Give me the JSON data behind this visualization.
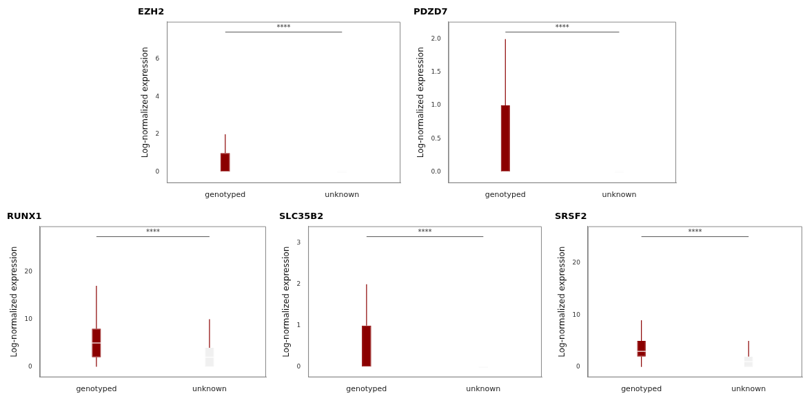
{
  "chart_data": [
    {
      "type": "box",
      "title": "EZH2",
      "ylabel": "Log-normalized expression",
      "categories": [
        "genotyped",
        "unknown"
      ],
      "colors": [
        "#8b0000",
        "#f0f0f0"
      ],
      "boxes": [
        {
          "low": 0,
          "q1": 0,
          "median": 0,
          "q3": 1,
          "high": 2
        },
        {
          "low": 0,
          "q1": 0,
          "median": 0,
          "q3": 0,
          "high": 0
        }
      ],
      "ylim": [
        -0.6,
        8.0
      ],
      "yticks": [
        0,
        2,
        4,
        6
      ],
      "grid": false,
      "annotations": [
        "****"
      ]
    },
    {
      "type": "box",
      "title": "PDZD7",
      "ylabel": "Log-normalized expression",
      "categories": [
        "genotyped",
        "unknown"
      ],
      "colors": [
        "#8b0000",
        "#f0f0f0"
      ],
      "boxes": [
        {
          "low": 0,
          "q1": 0,
          "median": 0,
          "q3": 1,
          "high": 2
        },
        {
          "low": 0,
          "q1": 0,
          "median": 0,
          "q3": 0,
          "high": 0
        }
      ],
      "ylim": [
        -0.17,
        2.26
      ],
      "yticks": [
        {
          "value": 0,
          "label": "0.0"
        },
        0.5,
        {
          "value": 1,
          "label": "1.0"
        },
        1.5,
        {
          "value": 2,
          "label": "2.0"
        }
      ],
      "grid": false,
      "annotations": [
        "****"
      ]
    },
    {
      "type": "box",
      "title": "RUNX1",
      "ylabel": "Log-normalized expression",
      "categories": [
        "genotyped",
        "unknown"
      ],
      "colors": [
        "#8b0000",
        "#f0f0f0"
      ],
      "boxes": [
        {
          "low": 0,
          "q1": 2,
          "median": 5,
          "q3": 8,
          "high": 17
        },
        {
          "low": 0,
          "q1": 0,
          "median": 2,
          "q3": 4,
          "high": 10
        }
      ],
      "ylim": [
        -2.2,
        29.5
      ],
      "yticks": [
        0,
        10,
        20
      ],
      "grid": false,
      "annotations": [
        "****"
      ]
    },
    {
      "type": "box",
      "title": "SLC35B2",
      "ylabel": "Log-normalized expression",
      "categories": [
        "genotyped",
        "unknown"
      ],
      "colors": [
        "#8b0000",
        "#f0f0f0"
      ],
      "boxes": [
        {
          "low": 0,
          "q1": 0,
          "median": 0,
          "q3": 1,
          "high": 2
        },
        {
          "low": 0,
          "q1": 0,
          "median": 0,
          "q3": 0,
          "high": 0
        }
      ],
      "ylim": [
        -0.25,
        3.4
      ],
      "yticks": [
        0,
        1,
        2,
        3
      ],
      "grid": false,
      "annotations": [
        "****"
      ]
    },
    {
      "type": "box",
      "title": "SRSF2",
      "ylabel": "Log-normalized expression",
      "categories": [
        "genotyped",
        "unknown"
      ],
      "colors": [
        "#8b0000",
        "#f0f0f0"
      ],
      "boxes": [
        {
          "low": 0,
          "q1": 2,
          "median": 3,
          "q3": 5,
          "high": 9
        },
        {
          "low": 0,
          "q1": 0,
          "median": 1,
          "q3": 2,
          "high": 5
        }
      ],
      "ylim": [
        -2.0,
        27.1
      ],
      "yticks": [
        0,
        10,
        20
      ],
      "grid": false,
      "annotations": [
        "****"
      ]
    }
  ]
}
